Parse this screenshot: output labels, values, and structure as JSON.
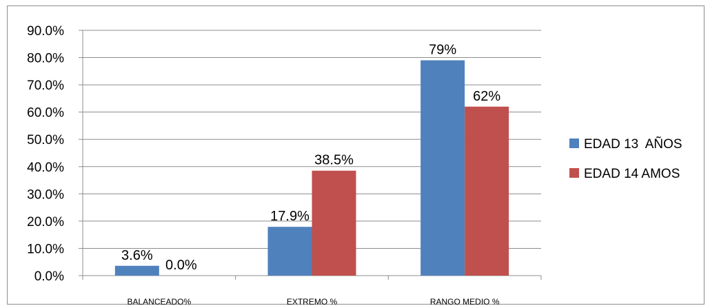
{
  "chart_data": {
    "type": "bar",
    "categories": [
      "BALANCEADO%",
      "EXTREMO %",
      "RANGO MEDIO %"
    ],
    "series": [
      {
        "name": "EDAD 13  AÑOS",
        "color": "#4f81bd",
        "values": [
          3.6,
          17.9,
          79
        ],
        "labels": [
          "3.6%",
          "17.9%",
          "79%"
        ]
      },
      {
        "name": "EDAD 14 AMOS",
        "color": "#c0504d",
        "values": [
          0.0,
          38.5,
          62
        ],
        "labels": [
          "0.0%",
          "38.5%",
          "62%"
        ]
      }
    ],
    "yticks": [
      "0.0%",
      "10.0%",
      "20.0%",
      "30.0%",
      "40.0%",
      "50.0%",
      "60.0%",
      "70.0%",
      "80.0%",
      "90.0%"
    ],
    "ylim": [
      0,
      90
    ],
    "grid": true,
    "legend": "right"
  }
}
